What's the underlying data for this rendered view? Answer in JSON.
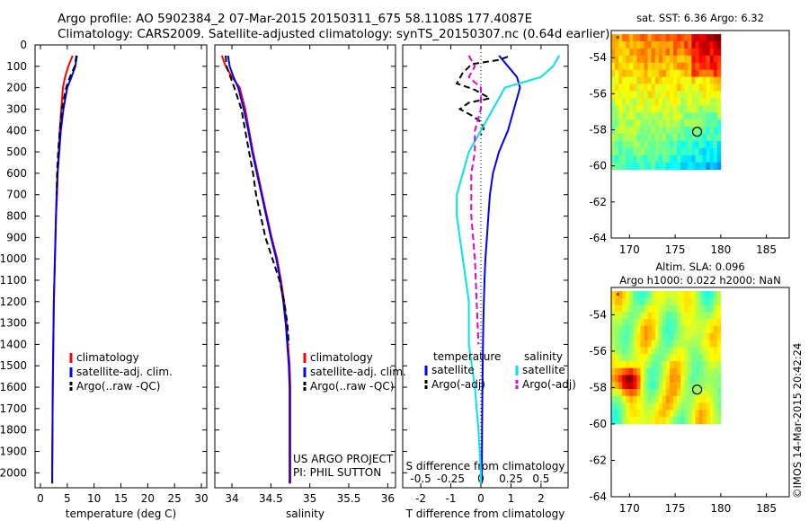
{
  "header": {
    "line1": "Argo profile: AO 5902384_2 07-Mar-2015 20150311_675 58.1108S 177.4087E",
    "line2": "Climatology: CARS2009. Satellite-adjusted climatology: synTS_20150307.nc (0.64d earlier)"
  },
  "stamp": "©IMOS 14-Mar-2015 20:42:24",
  "colors": {
    "climatology": "#ff0000",
    "satellite": "#0000ff",
    "argo": "#000000",
    "sat_salinity": "#00e5e5",
    "argo_salinity": "#e000e0"
  },
  "chart_data": [
    {
      "id": "temperature",
      "type": "line",
      "xlabel": "temperature (deg C)",
      "xlim": [
        -1,
        31
      ],
      "ylim": [
        2070,
        0
      ],
      "xticks": [
        "0",
        "5",
        "10",
        "15",
        "20",
        "25",
        "30"
      ],
      "yticks": [
        "0",
        "100",
        "200",
        "300",
        "400",
        "500",
        "600",
        "700",
        "800",
        "900",
        "1000",
        "1100",
        "1200",
        "1300",
        "1400",
        "1500",
        "1600",
        "1700",
        "1800",
        "1900",
        "2000"
      ],
      "legend": [
        "climatology",
        "satellite-adj. clim.",
        "Argo(..raw -QC)"
      ],
      "series": [
        {
          "name": "climatology",
          "style": "solid",
          "color": "#ff0000",
          "x": [
            6.0,
            5.2,
            4.6,
            4.2,
            3.9,
            3.6,
            3.4,
            3.2,
            3.1,
            2.9,
            2.8,
            2.7,
            2.6,
            2.5,
            2.45,
            2.4,
            2.35,
            2.3,
            2.25,
            2.2,
            2.2
          ],
          "y": [
            50,
            100,
            150,
            200,
            300,
            400,
            500,
            600,
            700,
            800,
            900,
            1000,
            1100,
            1200,
            1300,
            1400,
            1500,
            1600,
            1800,
            2000,
            2050
          ]
        },
        {
          "name": "satellite-adj. clim.",
          "style": "solid",
          "color": "#0000ff",
          "x": [
            6.8,
            6.5,
            5.8,
            5.0,
            4.3,
            3.8,
            3.5,
            3.2,
            3.0,
            2.9,
            2.8,
            2.7,
            2.6,
            2.5,
            2.45,
            2.4,
            2.35,
            2.3,
            2.25,
            2.2,
            2.2
          ],
          "y": [
            50,
            100,
            150,
            200,
            300,
            400,
            500,
            600,
            700,
            800,
            900,
            1000,
            1100,
            1200,
            1300,
            1400,
            1500,
            1600,
            1800,
            2000,
            2050
          ]
        },
        {
          "name": "Argo(..raw -QC)",
          "style": "dash",
          "color": "#000000",
          "x": [
            6.7,
            6.4,
            5.5,
            4.8,
            4.0,
            3.6,
            3.3,
            3.1,
            3.0
          ],
          "y": [
            50,
            100,
            150,
            200,
            300,
            400,
            500,
            600,
            700
          ]
        }
      ]
    },
    {
      "id": "salinity",
      "type": "line",
      "xlabel": "salinity",
      "xlim": [
        33.78,
        36.1
      ],
      "ylim": [
        2070,
        0
      ],
      "xticks": [
        "34",
        "34.5",
        "35",
        "35.5",
        "36"
      ],
      "legend": [
        "climatology",
        "satellite-adj. clim.",
        "Argo(..raw -QC)"
      ],
      "annotation": [
        "US ARGO PROJECT",
        "PI: PHIL SUTTON"
      ],
      "series": [
        {
          "name": "climatology",
          "style": "solid",
          "color": "#ff0000",
          "x": [
            33.87,
            33.92,
            34.0,
            34.1,
            34.17,
            34.22,
            34.27,
            34.33,
            34.39,
            34.45,
            34.51,
            34.58,
            34.63,
            34.67,
            34.7,
            34.72,
            34.74,
            34.75,
            34.75,
            34.75
          ],
          "y": [
            50,
            100,
            150,
            200,
            300,
            400,
            500,
            600,
            700,
            800,
            900,
            1000,
            1100,
            1200,
            1300,
            1400,
            1500,
            1600,
            1800,
            2050
          ]
        },
        {
          "name": "satellite-adj. clim.",
          "style": "solid",
          "color": "#0000ff",
          "x": [
            33.95,
            33.97,
            34.02,
            34.08,
            34.15,
            34.21,
            34.26,
            34.32,
            34.38,
            34.44,
            34.5,
            34.57,
            34.62,
            34.66,
            34.69,
            34.71,
            34.73,
            34.74,
            34.74,
            34.74
          ],
          "y": [
            50,
            100,
            150,
            200,
            300,
            400,
            500,
            600,
            700,
            800,
            900,
            1000,
            1100,
            1200,
            1300,
            1400,
            1500,
            1600,
            1800,
            2050
          ]
        },
        {
          "name": "Argo(..raw -QC)",
          "style": "dash",
          "color": "#000000",
          "x": [
            33.92,
            33.93,
            33.98,
            34.03,
            34.12,
            34.17,
            34.22,
            34.27,
            34.31,
            34.37,
            34.43,
            34.52,
            34.61,
            34.67,
            34.71,
            34.73
          ],
          "y": [
            50,
            100,
            150,
            200,
            300,
            400,
            500,
            600,
            700,
            800,
            900,
            1000,
            1100,
            1200,
            1300,
            1400
          ]
        }
      ]
    },
    {
      "id": "difference",
      "type": "line",
      "xlabel": "T difference from climatology",
      "xlabel2": "S difference from climatology",
      "xlim": [
        -2.6,
        2.9
      ],
      "ylim": [
        2070,
        0
      ],
      "xticks": [
        "-2",
        "-1",
        "0",
        "1",
        "2"
      ],
      "xticks_s": [
        "-0.5",
        "-0.25",
        "0",
        "0.25",
        "0.5"
      ],
      "legend_titles": [
        "temperature",
        "salinity"
      ],
      "legend": [
        "satellite",
        "Argo(-adj)",
        "satellite",
        "Argo(-adj)"
      ],
      "series": [
        {
          "name": "satellite",
          "group": "temperature",
          "style": "solid",
          "color": "#0000ff",
          "x": [
            0.6,
            0.9,
            1.2,
            1.3,
            1.1,
            0.9,
            0.6,
            0.4,
            0.3,
            0.25,
            0.2,
            0.15,
            0.12,
            0.1,
            0.08,
            0.07,
            0.06,
            0.05,
            0.04,
            0.03
          ],
          "y": [
            50,
            100,
            150,
            200,
            300,
            400,
            500,
            600,
            700,
            800,
            900,
            1000,
            1100,
            1200,
            1300,
            1400,
            1500,
            1600,
            1800,
            2050
          ]
        },
        {
          "name": "Argo(-adj)",
          "group": "temperature",
          "style": "dash",
          "color": "#000000",
          "x": [
            0.9,
            0.6,
            -0.3,
            -0.6,
            -0.8,
            -0.2,
            0.3,
            -0.4,
            -0.7,
            -0.3,
            0.0,
            0.1,
            0.0
          ],
          "y": [
            55,
            70,
            90,
            130,
            180,
            210,
            250,
            270,
            300,
            330,
            360,
            390,
            420
          ]
        },
        {
          "name": "satellite",
          "group": "salinity",
          "style": "solid",
          "color": "#00e5e5",
          "x": [
            0.65,
            0.6,
            0.5,
            0.2,
            0.1,
            0.0,
            -0.1,
            -0.15,
            -0.2,
            -0.2,
            -0.15,
            -0.1,
            -0.1,
            -0.05,
            -0.02,
            0.0,
            0.0
          ],
          "y": [
            50,
            100,
            150,
            200,
            300,
            400,
            500,
            600,
            700,
            800,
            1000,
            1200,
            1400,
            1600,
            1800,
            2000,
            2050
          ]
        },
        {
          "name": "Argo(-adj)",
          "group": "salinity",
          "style": "dash",
          "color": "#e000e0",
          "x": [
            -0.1,
            -0.05,
            -0.1,
            0.0,
            0.0,
            -0.05,
            -0.05,
            -0.08,
            -0.08,
            -0.05,
            -0.02
          ],
          "y": [
            50,
            100,
            150,
            200,
            300,
            400,
            500,
            600,
            800,
            1000,
            1400
          ]
        }
      ]
    },
    {
      "id": "sst-map",
      "type": "heatmap",
      "title": "sat. SST: 6.36 Argo: 6.32",
      "xlim": [
        168,
        187.5
      ],
      "ylim": [
        -64,
        -52.5
      ],
      "xticks": [
        "170",
        "175",
        "180",
        "185"
      ],
      "yticks": [
        "-54",
        "-56",
        "-58",
        "-60",
        "-62",
        "-64"
      ],
      "data_extent": {
        "lon": [
          168,
          180
        ],
        "lat": [
          -60.2,
          -52.7
        ]
      },
      "argo_position": {
        "lon": 177.41,
        "lat": -58.11
      }
    },
    {
      "id": "sla-map",
      "type": "heatmap",
      "title": "Altim. SLA: 0.096",
      "subtitle": "Argo h1000: 0.022 h2000: NaN",
      "xlim": [
        168,
        187.5
      ],
      "ylim": [
        -64,
        -52.5
      ],
      "xticks": [
        "170",
        "175",
        "180",
        "185"
      ],
      "yticks": [
        "-54",
        "-56",
        "-58",
        "-60",
        "-62",
        "-64"
      ],
      "data_extent": {
        "lon": [
          168,
          180
        ],
        "lat": [
          -60,
          -52.7
        ]
      },
      "argo_position": {
        "lon": 177.41,
        "lat": -58.11
      }
    }
  ]
}
